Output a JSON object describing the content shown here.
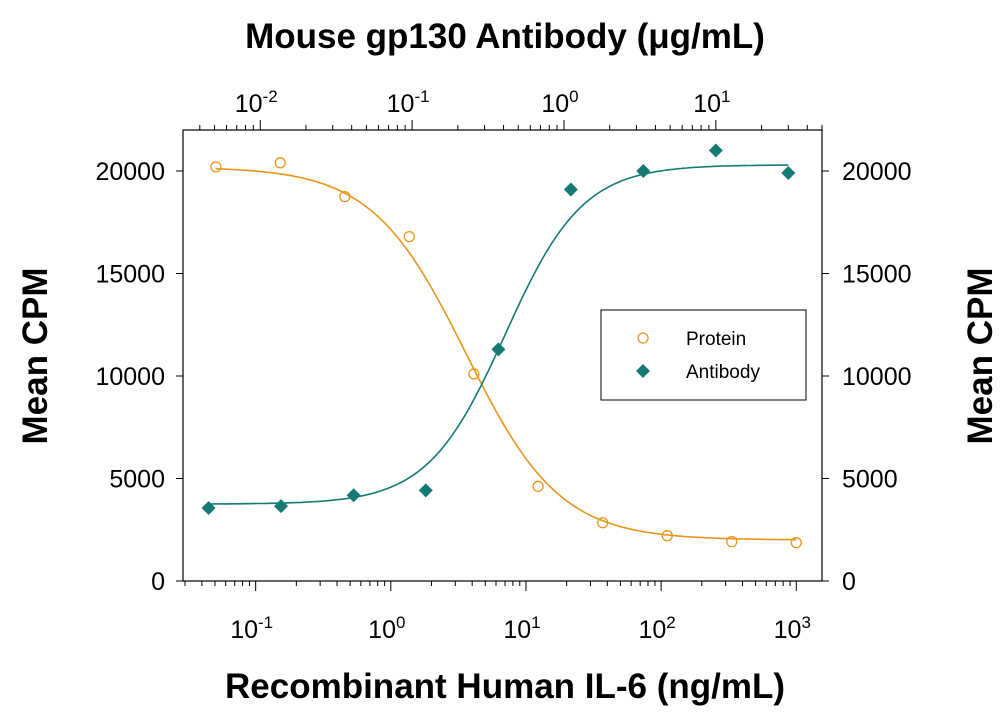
{
  "chart_data": {
    "type": "scatter",
    "title": "",
    "xlabel": "Recombinant Human IL-6 (ng/mL)",
    "x2label": "Mouse gp130 Antibody (μg/mL)",
    "ylabel": "Mean CPM",
    "y2label": "Mean CPM",
    "xscale": "log",
    "x2scale": "log",
    "xlim": [
      0.029,
      1550
    ],
    "x2lim": [
      0.0031,
      50
    ],
    "ylim": [
      0,
      22000
    ],
    "yticks": [
      "0",
      "5000",
      "10000",
      "15000",
      "20000"
    ],
    "xticks": [
      {
        "base": "10",
        "exp": "-1"
      },
      {
        "base": "10",
        "exp": "0"
      },
      {
        "base": "10",
        "exp": "1"
      },
      {
        "base": "10",
        "exp": "2"
      },
      {
        "base": "10",
        "exp": "3"
      }
    ],
    "x2ticks": [
      {
        "base": "10",
        "exp": "-2"
      },
      {
        "base": "10",
        "exp": "-1"
      },
      {
        "base": "10",
        "exp": "0"
      },
      {
        "base": "10",
        "exp": "1"
      }
    ],
    "grid": false,
    "legend_position": "center-right",
    "series": [
      {
        "name": "Protein",
        "axis": "bottom",
        "marker": "open-circle",
        "color": "#E8961A",
        "x": [
          0.0508,
          0.152,
          0.457,
          1.37,
          4.12,
          12.3,
          37,
          111,
          333,
          1000
        ],
        "y": [
          20200,
          20400,
          18750,
          16800,
          10100,
          4620,
          2840,
          2210,
          1920,
          1870
        ],
        "fit": {
          "top": 20200,
          "bottom": 2000,
          "ec50": 3.6,
          "hill": 1.25
        }
      },
      {
        "name": "Antibody",
        "axis": "top",
        "marker": "filled-diamond",
        "color": "#157A74",
        "x": [
          0.00457,
          0.0137,
          0.0412,
          0.123,
          0.37,
          1.11,
          3.33,
          10,
          30
        ],
        "y": [
          3560,
          3650,
          4180,
          4420,
          11300,
          19100,
          20000,
          21000,
          19900
        ],
        "fit": {
          "top": 20300,
          "bottom": 3750,
          "ec50": 0.41,
          "hill": 1.7
        }
      }
    ]
  }
}
